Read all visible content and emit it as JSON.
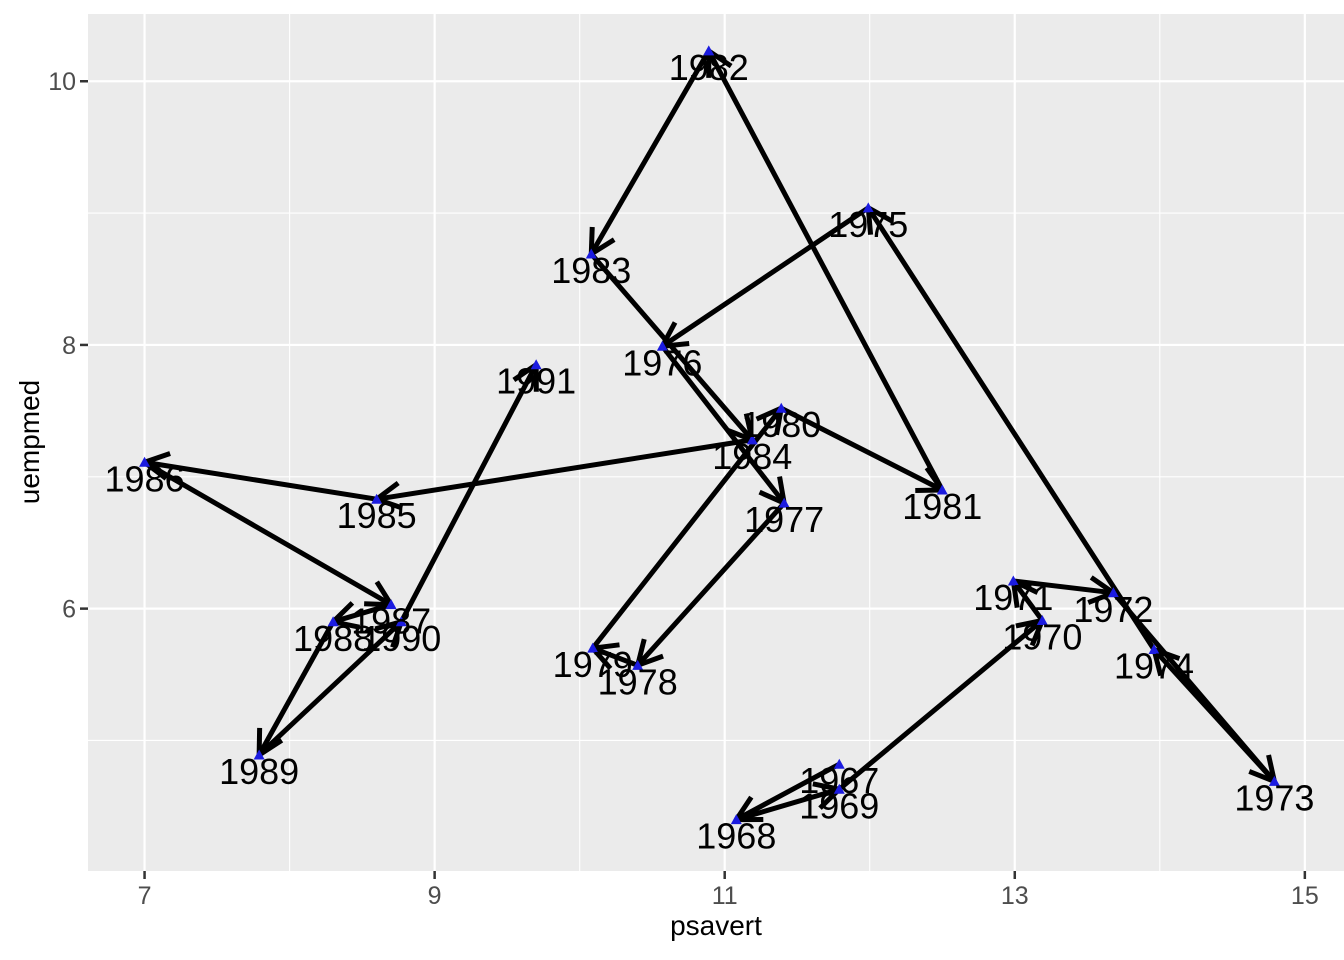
{
  "chart_data": {
    "type": "scatter",
    "subtype": "connected-scatterplot-with-arrows",
    "title": "",
    "xlabel": "psavert",
    "ylabel": "uempmed",
    "xlim": [
      6.61,
      15.27
    ],
    "ylim": [
      4.01,
      10.51
    ],
    "x_ticks": [
      7,
      9,
      11,
      13,
      15
    ],
    "x_minor_ticks": [
      8,
      10,
      12,
      14
    ],
    "y_ticks": [
      6,
      8,
      10
    ],
    "y_minor_ticks": [
      5,
      7,
      9
    ],
    "grid": "on",
    "legend": "none",
    "path_note": "black arrow segments connect consecutive years in chronological order, arrowhead at the later year",
    "points": [
      {
        "year": "1967",
        "psavert": 11.79,
        "uempmed": 4.82
      },
      {
        "year": "1968",
        "psavert": 11.08,
        "uempmed": 4.4
      },
      {
        "year": "1969",
        "psavert": 11.79,
        "uempmed": 4.63
      },
      {
        "year": "1970",
        "psavert": 13.19,
        "uempmed": 5.91
      },
      {
        "year": "1971",
        "psavert": 12.99,
        "uempmed": 6.21
      },
      {
        "year": "1972",
        "psavert": 13.68,
        "uempmed": 6.12
      },
      {
        "year": "1973",
        "psavert": 14.79,
        "uempmed": 4.69
      },
      {
        "year": "1974",
        "psavert": 13.96,
        "uempmed": 5.69
      },
      {
        "year": "1975",
        "psavert": 11.99,
        "uempmed": 9.04
      },
      {
        "year": "1976",
        "psavert": 10.57,
        "uempmed": 7.99
      },
      {
        "year": "1977",
        "psavert": 11.41,
        "uempmed": 6.8
      },
      {
        "year": "1978",
        "psavert": 10.4,
        "uempmed": 5.57
      },
      {
        "year": "1979",
        "psavert": 10.09,
        "uempmed": 5.7
      },
      {
        "year": "1980",
        "psavert": 11.39,
        "uempmed": 7.52
      },
      {
        "year": "1981",
        "psavert": 12.5,
        "uempmed": 6.9
      },
      {
        "year": "1982",
        "psavert": 10.89,
        "uempmed": 10.23
      },
      {
        "year": "1983",
        "psavert": 10.08,
        "uempmed": 8.69
      },
      {
        "year": "1984",
        "psavert": 11.19,
        "uempmed": 7.28
      },
      {
        "year": "1985",
        "psavert": 8.6,
        "uempmed": 6.83
      },
      {
        "year": "1986",
        "psavert": 7.0,
        "uempmed": 7.11
      },
      {
        "year": "1987",
        "psavert": 8.7,
        "uempmed": 6.03
      },
      {
        "year": "1988",
        "psavert": 8.3,
        "uempmed": 5.9
      },
      {
        "year": "1989",
        "psavert": 7.79,
        "uempmed": 4.89
      },
      {
        "year": "1990",
        "psavert": 8.77,
        "uempmed": 5.9
      },
      {
        "year": "1991",
        "psavert": 9.7,
        "uempmed": 7.85
      }
    ],
    "colors": {
      "panel_bg": "#ebebeb",
      "grid": "#ffffff",
      "segment": "#000000",
      "marker": "#1b1be0",
      "year_label": "#000000",
      "axis_text": "#4d4d4d",
      "tick_mark": "#333333",
      "axis_title": "#000000"
    }
  }
}
